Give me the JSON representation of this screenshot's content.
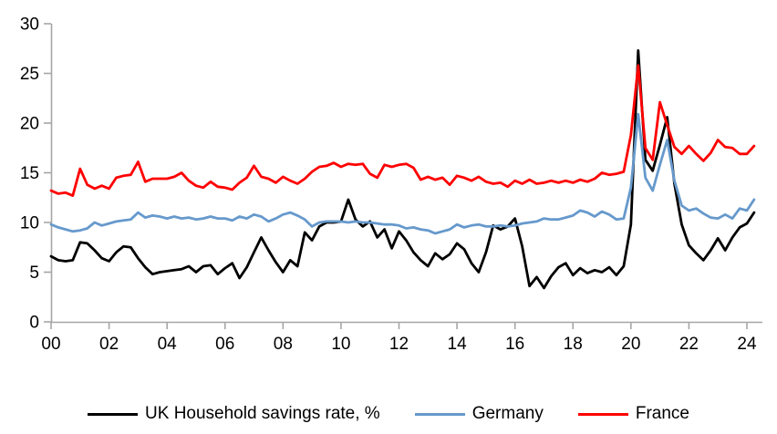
{
  "chart_data": {
    "type": "line",
    "title": "",
    "x_start": 2000,
    "x_step": 0.25,
    "x_axis": {
      "tick_years": [
        2000,
        2002,
        2004,
        2006,
        2008,
        2010,
        2012,
        2014,
        2016,
        2018,
        2020,
        2022,
        2024
      ],
      "tick_labels": [
        "00",
        "02",
        "04",
        "06",
        "08",
        "10",
        "12",
        "14",
        "16",
        "18",
        "20",
        "22",
        "24"
      ],
      "range": [
        2000,
        2024.5
      ]
    },
    "y_axis": {
      "ticks": [
        0,
        5,
        10,
        15,
        20,
        25,
        30
      ],
      "tick_labels": [
        "0",
        "5",
        "10",
        "15",
        "20",
        "25",
        "30"
      ],
      "range": [
        0,
        30
      ]
    },
    "grid": false,
    "legend_position": "bottom",
    "series": [
      {
        "id": "uk",
        "name": "UK Household savings rate, %",
        "color": "#000000",
        "values": [
          6.6,
          6.2,
          6.1,
          6.2,
          8.0,
          7.9,
          7.2,
          6.4,
          6.1,
          7.0,
          7.6,
          7.5,
          6.4,
          5.5,
          4.8,
          5.0,
          5.1,
          5.2,
          5.3,
          5.6,
          5.0,
          5.6,
          5.7,
          4.8,
          5.4,
          5.9,
          4.4,
          5.5,
          7.0,
          8.5,
          7.2,
          6.0,
          5.0,
          6.2,
          5.6,
          9.0,
          8.2,
          9.6,
          10.0,
          10.0,
          10.1,
          12.3,
          10.3,
          9.6,
          10.1,
          8.5,
          9.3,
          7.4,
          9.1,
          8.2,
          7.0,
          6.2,
          5.6,
          6.9,
          6.3,
          6.8,
          7.9,
          7.3,
          5.9,
          5.0,
          7.0,
          9.7,
          9.3,
          9.6,
          10.4,
          7.6,
          3.6,
          4.5,
          3.4,
          4.6,
          5.5,
          5.9,
          4.7,
          5.4,
          4.9,
          5.2,
          5.0,
          5.5,
          4.7,
          5.6,
          9.8,
          27.3,
          16.3,
          15.2,
          17.8,
          20.6,
          13.9,
          9.8,
          7.7,
          6.9,
          6.2,
          7.2,
          8.4,
          7.2,
          8.5,
          9.5,
          9.9,
          11.0
        ]
      },
      {
        "id": "germany",
        "name": "Germany",
        "color": "#6699CC",
        "values": [
          9.8,
          9.5,
          9.3,
          9.1,
          9.2,
          9.4,
          10.0,
          9.7,
          9.9,
          10.1,
          10.2,
          10.3,
          11.0,
          10.5,
          10.7,
          10.6,
          10.4,
          10.6,
          10.4,
          10.5,
          10.3,
          10.4,
          10.6,
          10.4,
          10.4,
          10.2,
          10.6,
          10.4,
          10.8,
          10.6,
          10.1,
          10.4,
          10.8,
          11.0,
          10.7,
          10.3,
          9.6,
          10.0,
          10.1,
          10.1,
          10.1,
          10.0,
          10.1,
          10.0,
          10.0,
          9.9,
          9.8,
          9.8,
          9.7,
          9.4,
          9.5,
          9.3,
          9.2,
          8.9,
          9.1,
          9.3,
          9.8,
          9.5,
          9.7,
          9.8,
          9.6,
          9.6,
          9.7,
          9.6,
          9.7,
          9.9,
          10.0,
          10.1,
          10.4,
          10.3,
          10.3,
          10.5,
          10.7,
          11.2,
          11.0,
          10.6,
          11.1,
          10.8,
          10.3,
          10.4,
          13.5,
          20.9,
          14.5,
          13.2,
          15.8,
          18.3,
          14.2,
          11.7,
          11.2,
          11.4,
          10.9,
          10.5,
          10.4,
          10.8,
          10.4,
          11.4,
          11.2,
          12.3
        ]
      },
      {
        "id": "france",
        "name": "France",
        "color": "#FF0000",
        "values": [
          13.2,
          12.9,
          13.0,
          12.7,
          15.4,
          13.8,
          13.4,
          13.7,
          13.4,
          14.5,
          14.7,
          14.8,
          16.1,
          14.1,
          14.4,
          14.4,
          14.4,
          14.6,
          15.0,
          14.2,
          13.7,
          13.5,
          14.1,
          13.6,
          13.5,
          13.3,
          14.0,
          14.5,
          15.7,
          14.6,
          14.4,
          14.0,
          14.6,
          14.2,
          13.9,
          14.4,
          15.1,
          15.6,
          15.7,
          16.0,
          15.6,
          15.9,
          15.8,
          15.9,
          14.9,
          14.5,
          15.8,
          15.6,
          15.8,
          15.9,
          15.5,
          14.3,
          14.6,
          14.3,
          14.5,
          13.8,
          14.7,
          14.5,
          14.2,
          14.6,
          14.1,
          13.9,
          14.0,
          13.6,
          14.2,
          13.9,
          14.3,
          13.9,
          14.0,
          14.2,
          14.0,
          14.2,
          14.0,
          14.3,
          14.1,
          14.4,
          15.0,
          14.8,
          14.9,
          15.1,
          18.8,
          25.8,
          17.5,
          16.3,
          22.1,
          19.8,
          17.6,
          16.9,
          17.7,
          16.9,
          16.2,
          17.0,
          18.3,
          17.6,
          17.5,
          16.9,
          16.9,
          17.7
        ]
      }
    ]
  },
  "colors": {
    "axis": "#A6A6A6",
    "text": "#000000",
    "background": "#FFFFFF"
  }
}
